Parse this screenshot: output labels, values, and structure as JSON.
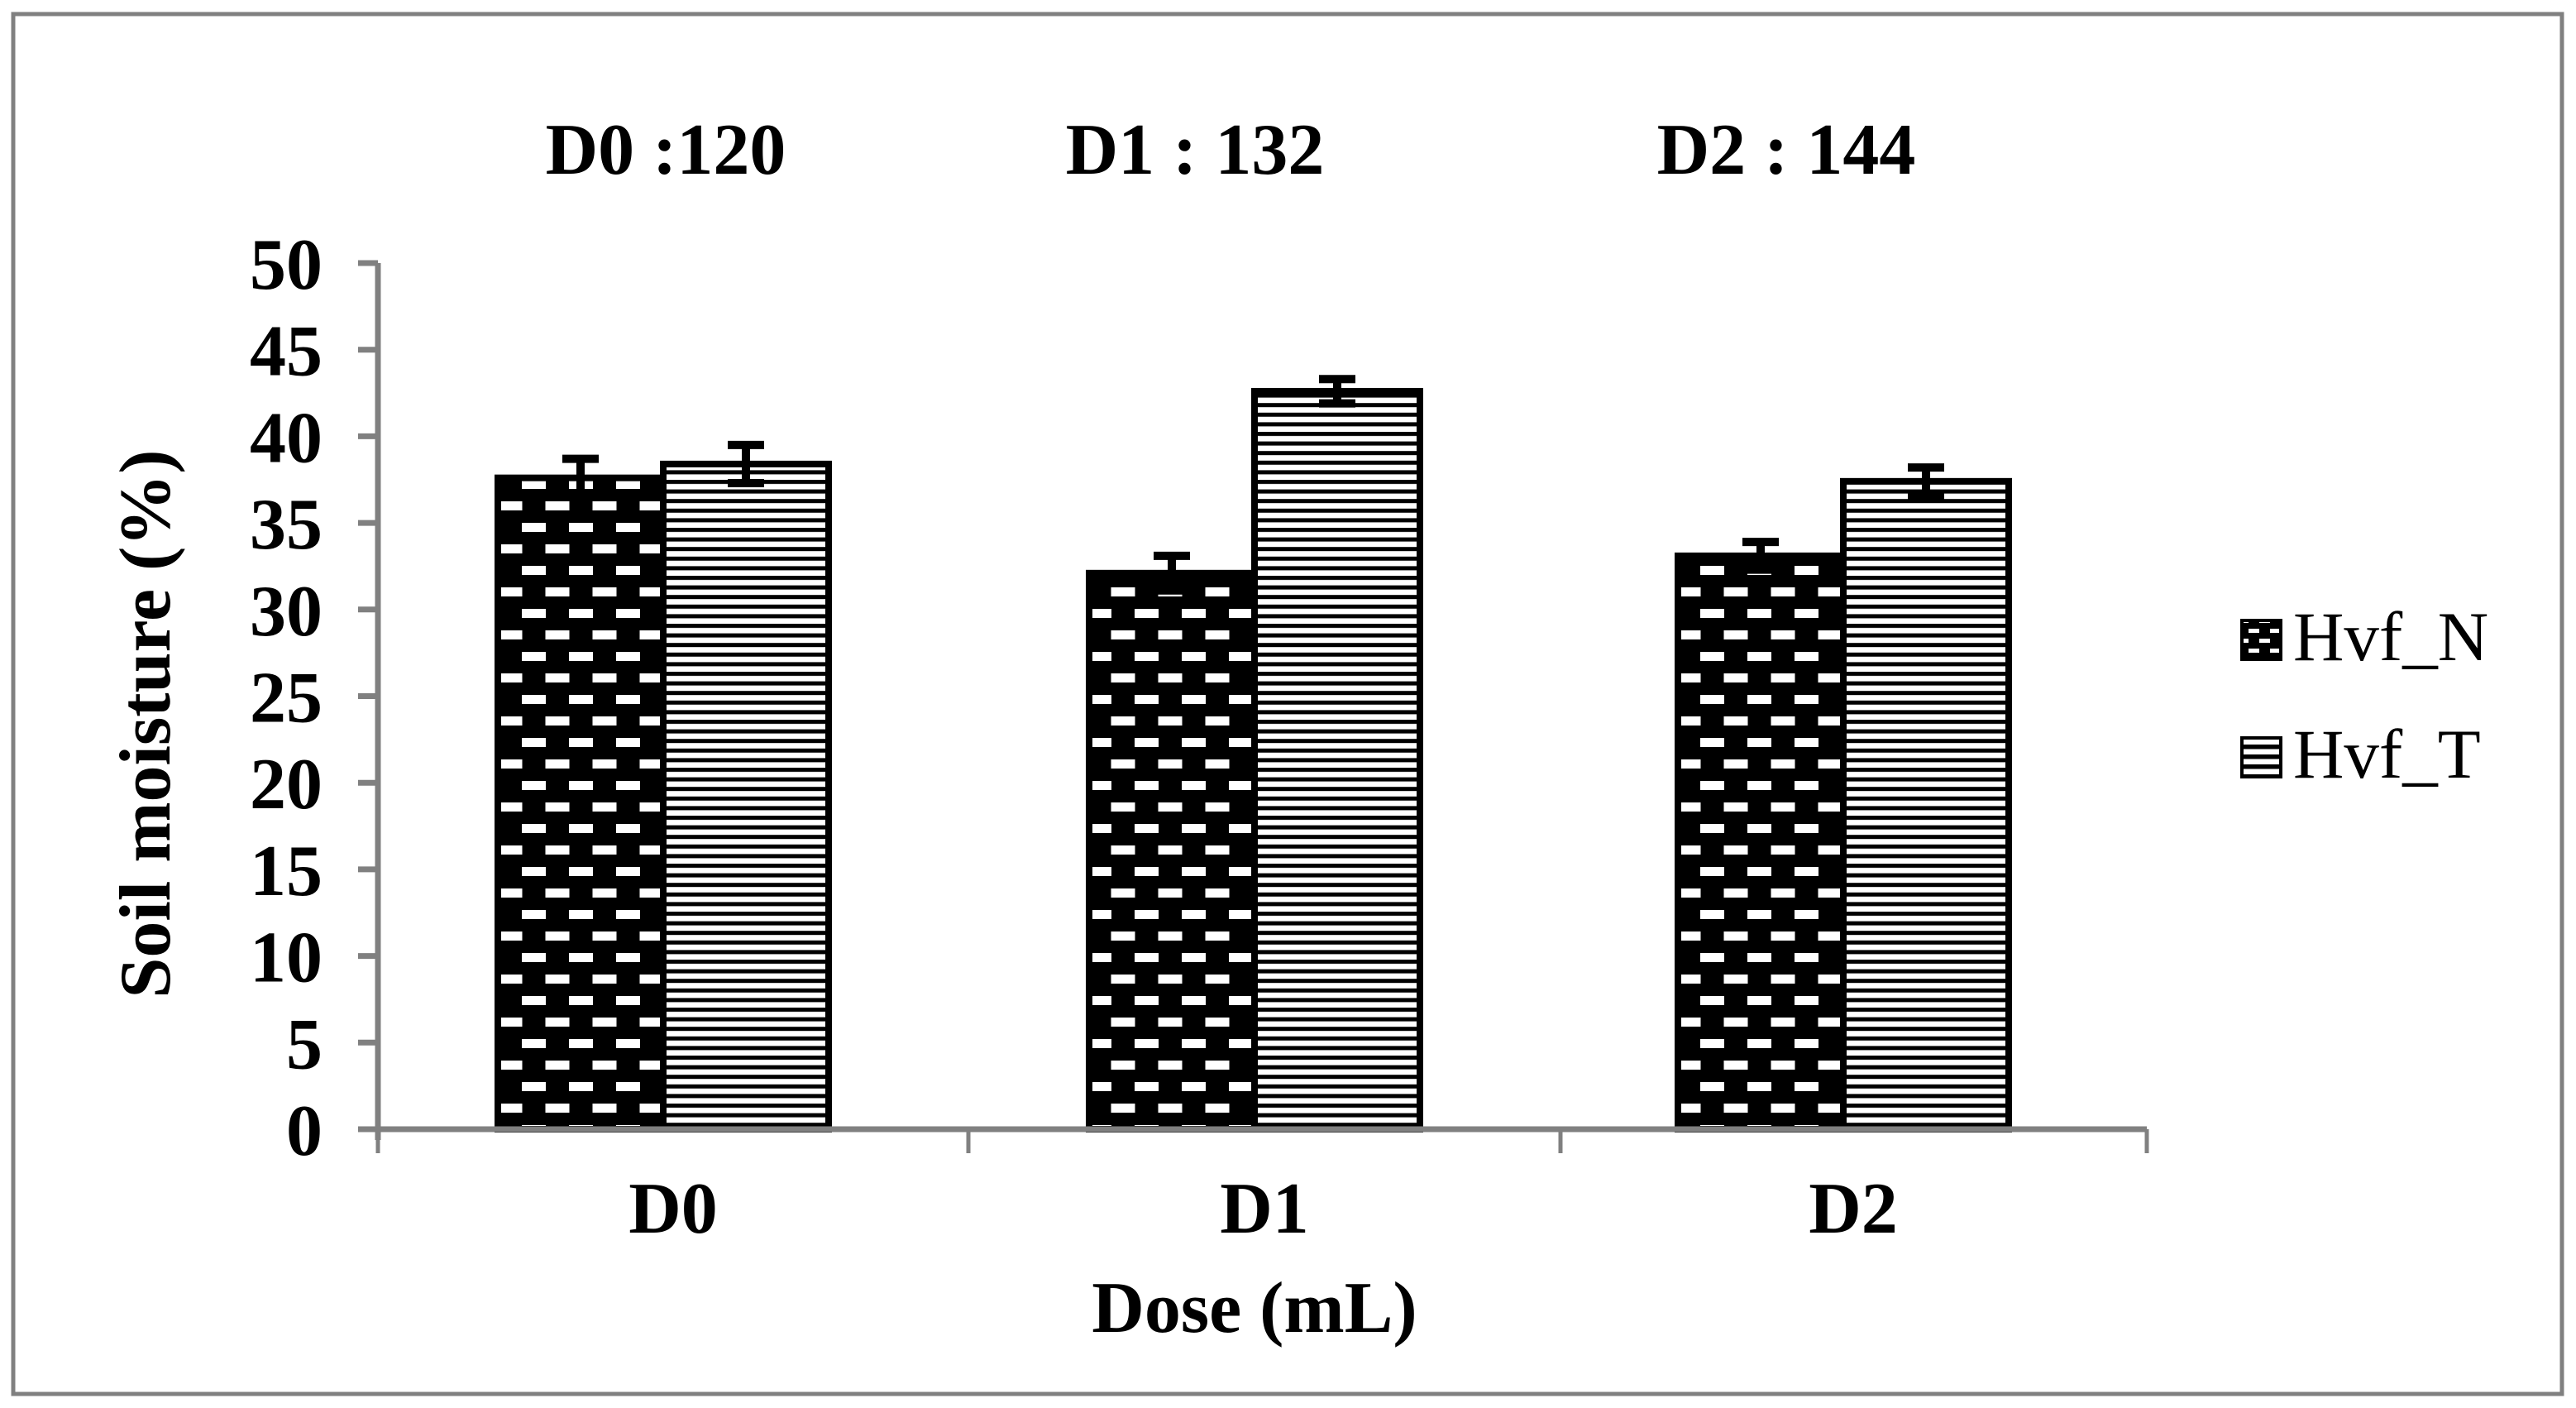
{
  "figure": {
    "background": "#ffffff",
    "border_color": "#808080"
  },
  "colors": {
    "bar_outline": "#000000",
    "axis": "#808080",
    "text": "#000000",
    "error_bar": "#000000"
  },
  "chart_data": {
    "type": "bar",
    "title": "",
    "categories": [
      "D0",
      "D1",
      "D2"
    ],
    "series": [
      {
        "name": "Hvf_N",
        "pattern": "checker-dashes",
        "values": [
          37.6,
          32.1,
          33.1
        ],
        "errors": [
          1.1,
          1.0,
          0.8
        ]
      },
      {
        "name": "Hvf_T",
        "pattern": "horizontal-lines",
        "values": [
          38.4,
          42.6,
          37.4
        ],
        "errors": [
          1.1,
          0.7,
          0.8
        ]
      }
    ],
    "annotations": [
      "D0 :120",
      "D1 : 132",
      "D2 : 144"
    ],
    "xlabel": "Dose (mL)",
    "ylabel": "Soil moisture  (%)",
    "ylim": [
      0,
      50
    ],
    "ytick_step": 5,
    "yticks": [
      "0",
      "5",
      "10",
      "15",
      "20",
      "25",
      "30",
      "35",
      "40",
      "45",
      "50"
    ],
    "grid": false,
    "error_bars": true,
    "legend_position": "right"
  },
  "legend": {
    "items": [
      {
        "label": "Hvf_N",
        "swatch": "checker-pattern-swatch"
      },
      {
        "label": "Hvf_T",
        "swatch": "hlines-pattern-swatch"
      }
    ]
  }
}
